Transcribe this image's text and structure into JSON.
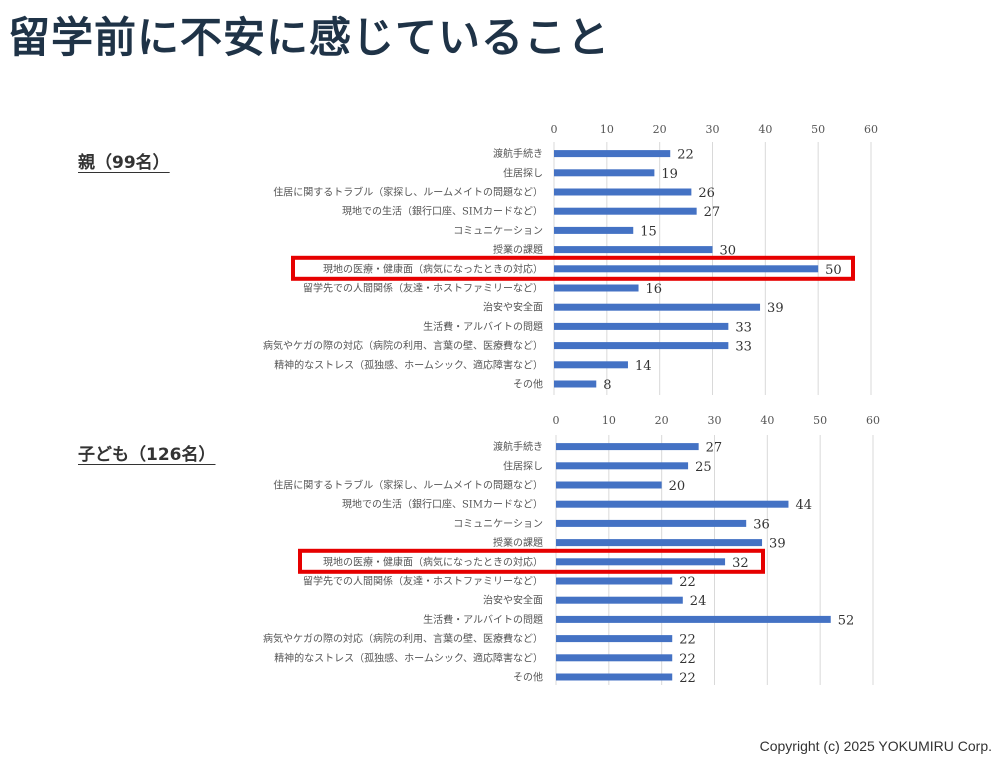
{
  "page": {
    "title": "留学前に不安に感じていること",
    "copyright": "Copyright (c) 2025 YOKUMIRU Corp."
  },
  "colors": {
    "bar": "#4472c4",
    "highlight": "#e60000",
    "title": "#1f3347",
    "grid": "#d9d9d9"
  },
  "chart_data": [
    {
      "type": "bar",
      "orientation": "horizontal",
      "title": "親（99名）",
      "categories": [
        "渡航手続き",
        "住居探し",
        "住居に関するトラブル（家探し、ルームメイトの問題など）",
        "現地での生活（銀行口座、SIMカードなど）",
        "コミュニケーション",
        "授業の課題",
        "現地の医療・健康面（病気になったときの対応）",
        "留学先での人間関係（友達・ホストファミリーなど）",
        "治安や安全面",
        "生活費・アルバイトの問題",
        "病気やケガの際の対応（病院の利用、言葉の壁、医療費など）",
        "精神的なストレス（孤独感、ホームシック、適応障害など）",
        "その他"
      ],
      "values": [
        22,
        19,
        26,
        27,
        15,
        30,
        50,
        16,
        39,
        33,
        33,
        14,
        8
      ],
      "xlim": [
        0,
        60
      ],
      "ticks": [
        "0",
        "10",
        "20",
        "30",
        "40",
        "50",
        "60"
      ],
      "grid": true,
      "highlight_index": 6
    },
    {
      "type": "bar",
      "orientation": "horizontal",
      "title": "子ども（126名）",
      "categories": [
        "渡航手続き",
        "住居探し",
        "住居に関するトラブル（家探し、ルームメイトの問題など）",
        "現地での生活（銀行口座、SIMカードなど）",
        "コミュニケーション",
        "授業の課題",
        "現地の医療・健康面（病気になったときの対応）",
        "留学先での人間関係（友達・ホストファミリーなど）",
        "治安や安全面",
        "生活費・アルバイトの問題",
        "病気やケガの際の対応（病院の利用、言葉の壁、医療費など）",
        "精神的なストレス（孤独感、ホームシック、適応障害など）",
        "その他"
      ],
      "values": [
        27,
        25,
        20,
        44,
        36,
        39,
        32,
        22,
        24,
        52,
        22,
        22,
        22
      ],
      "xlim": [
        0,
        60
      ],
      "ticks": [
        "0",
        "10",
        "20",
        "30",
        "40",
        "50",
        "60"
      ],
      "grid": true,
      "highlight_index": 6
    }
  ]
}
